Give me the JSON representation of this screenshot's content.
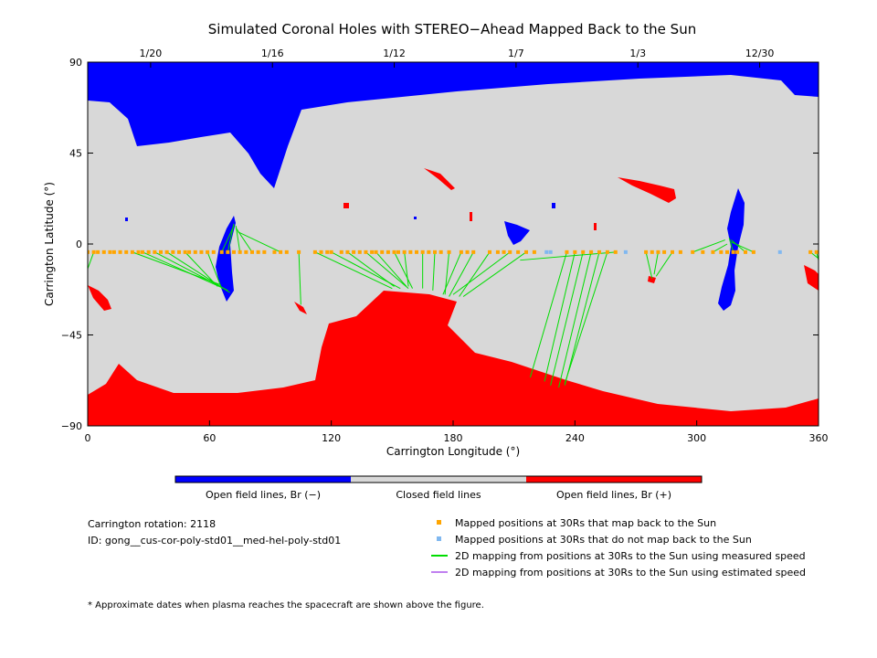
{
  "chart_data": {
    "type": "map",
    "title": "Simulated Coronal Holes with STEREO−Ahead Mapped Back to the Sun",
    "xlabel": "Carrington Longitude (°)",
    "ylabel": "Carrington Latitude (°)",
    "xlim": [
      0,
      360
    ],
    "ylim": [
      -90,
      90
    ],
    "x_ticks": [
      0,
      60,
      120,
      180,
      240,
      300,
      360
    ],
    "y_ticks": [
      90,
      45,
      0,
      -45,
      -90
    ],
    "y_tick_labels": [
      "90",
      "45",
      "0",
      "−45",
      "−90"
    ],
    "top_date_ticks": [
      {
        "lon": 31,
        "label": "1/20"
      },
      {
        "lon": 91,
        "label": "1/16"
      },
      {
        "lon": 151,
        "label": "1/12"
      },
      {
        "lon": 211,
        "label": "1/7"
      },
      {
        "lon": 271,
        "label": "1/3"
      },
      {
        "lon": 331,
        "label": "12/30"
      }
    ],
    "colors": {
      "open_negative": "#0000ff",
      "closed": "#d8d8d8",
      "open_positive": "#ff0000",
      "mapped_back": "#ffa500",
      "not_mapped": "#80b8f0",
      "measured_speed": "#00dd00",
      "estimated_speed": "#c080f0"
    },
    "colorbar": [
      {
        "label": "Open field lines, Br (−)",
        "color": "#0000ff"
      },
      {
        "label": "Closed field lines",
        "color": "#d8d8d8"
      },
      {
        "label": "Open field lines, Br (+)",
        "color": "#ff0000"
      }
    ],
    "mapped_points_lat": -4,
    "mapped_points_lon": [
      0,
      3,
      5,
      8,
      11,
      13,
      16,
      19,
      22,
      25,
      27,
      30,
      33,
      36,
      39,
      42,
      45,
      48,
      50,
      53,
      56,
      59,
      62,
      66,
      69,
      72,
      75,
      78,
      81,
      84,
      87,
      92,
      95,
      98,
      104,
      112,
      115,
      118,
      120,
      125,
      128,
      131,
      134,
      137,
      140,
      142,
      145,
      148,
      151,
      153,
      156,
      159,
      162,
      165,
      168,
      171,
      174,
      178,
      184,
      187,
      190,
      198,
      202,
      205,
      208,
      212,
      216,
      220,
      236,
      240,
      244,
      248,
      252,
      256,
      260,
      275,
      278,
      281,
      284,
      288,
      292,
      298,
      303,
      308,
      312,
      315,
      318,
      320,
      324,
      328,
      356,
      359
    ],
    "unmapped_points_lon": [
      226,
      228,
      265,
      341
    ],
    "mapping_lines": [
      [
        [
          0,
          -4
        ],
        [
          -2,
          -12
        ]
      ],
      [
        [
          3,
          -4
        ],
        [
          -1,
          -15
        ]
      ],
      [
        [
          22,
          -4
        ],
        [
          65,
          -20
        ]
      ],
      [
        [
          27,
          -4
        ],
        [
          67,
          -22
        ]
      ],
      [
        [
          33,
          -4
        ],
        [
          69,
          -23
        ]
      ],
      [
        [
          39,
          -4
        ],
        [
          70,
          -24
        ]
      ],
      [
        [
          48,
          -4
        ],
        [
          64,
          -21
        ]
      ],
      [
        [
          59,
          -4
        ],
        [
          66,
          -22
        ]
      ],
      [
        [
          66,
          -4
        ],
        [
          72,
          9
        ]
      ],
      [
        [
          69,
          -4
        ],
        [
          72,
          10
        ]
      ],
      [
        [
          75,
          -4
        ],
        [
          73,
          9
        ]
      ],
      [
        [
          81,
          -4
        ],
        [
          73,
          8
        ]
      ],
      [
        [
          95,
          -4
        ],
        [
          74,
          6
        ]
      ],
      [
        [
          104,
          -4
        ],
        [
          105,
          -30
        ]
      ],
      [
        [
          112,
          -4
        ],
        [
          150,
          -22
        ]
      ],
      [
        [
          120,
          -4
        ],
        [
          154,
          -22
        ]
      ],
      [
        [
          128,
          -4
        ],
        [
          151,
          -21
        ]
      ],
      [
        [
          137,
          -4
        ],
        [
          158,
          -22
        ]
      ],
      [
        [
          142,
          -4
        ],
        [
          157,
          -21
        ]
      ],
      [
        [
          151,
          -4
        ],
        [
          160,
          -22
        ]
      ],
      [
        [
          156,
          -4
        ],
        [
          158,
          -21
        ]
      ],
      [
        [
          165,
          -4
        ],
        [
          165,
          -22
        ]
      ],
      [
        [
          171,
          -4
        ],
        [
          170,
          -23
        ]
      ],
      [
        [
          178,
          -4
        ],
        [
          176,
          -25
        ]
      ],
      [
        [
          184,
          -4
        ],
        [
          175,
          -25
        ]
      ],
      [
        [
          190,
          -4
        ],
        [
          178,
          -26
        ]
      ],
      [
        [
          198,
          -4
        ],
        [
          183,
          -26
        ]
      ],
      [
        [
          208,
          -4
        ],
        [
          180,
          -25
        ]
      ],
      [
        [
          216,
          -4
        ],
        [
          185,
          -26
        ]
      ],
      [
        [
          236,
          -4
        ],
        [
          218,
          -66
        ]
      ],
      [
        [
          240,
          -4
        ],
        [
          225,
          -68
        ]
      ],
      [
        [
          244,
          -4
        ],
        [
          228,
          -70
        ]
      ],
      [
        [
          248,
          -4
        ],
        [
          232,
          -71
        ]
      ],
      [
        [
          252,
          -4
        ],
        [
          235,
          -70
        ]
      ],
      [
        [
          256,
          -4
        ],
        [
          235,
          -69
        ]
      ],
      [
        [
          260,
          -4
        ],
        [
          213,
          -8
        ]
      ],
      [
        [
          275,
          -4
        ],
        [
          278,
          -17
        ]
      ],
      [
        [
          281,
          -4
        ],
        [
          279,
          -15
        ]
      ],
      [
        [
          288,
          -4
        ],
        [
          280,
          -16
        ]
      ],
      [
        [
          298,
          -4
        ],
        [
          314,
          2
        ]
      ],
      [
        [
          308,
          -4
        ],
        [
          315,
          0
        ]
      ],
      [
        [
          318,
          -4
        ],
        [
          316,
          3
        ]
      ],
      [
        [
          324,
          -4
        ],
        [
          317,
          2
        ]
      ],
      [
        [
          328,
          -4
        ],
        [
          317,
          1
        ]
      ],
      [
        [
          356,
          -4
        ],
        [
          361,
          -8
        ]
      ],
      [
        [
          359,
          -4
        ],
        [
          361,
          -12
        ]
      ]
    ],
    "text": {
      "carrington_rotation": "Carrington rotation: 2118",
      "model_id": "ID: gong__cus-cor-poly-std01__med-hel-poly-std01"
    },
    "legend": [
      {
        "label": "Mapped positions at 30Rs that map back to the Sun",
        "marker": "square",
        "color": "#ffa500"
      },
      {
        "label": "Mapped positions at 30Rs that do not map back to the Sun",
        "marker": "square",
        "color": "#80b8f0"
      },
      {
        "label": "2D mapping from positions at 30Rs to the Sun using measured speed",
        "marker": "line",
        "color": "#00dd00"
      },
      {
        "label": "2D mapping from positions at 30Rs to the Sun using estimated speed",
        "marker": "line",
        "color": "#c080f0"
      }
    ],
    "footnote": "* Approximate dates when plasma reaches the spacecraft are shown above the figure."
  }
}
